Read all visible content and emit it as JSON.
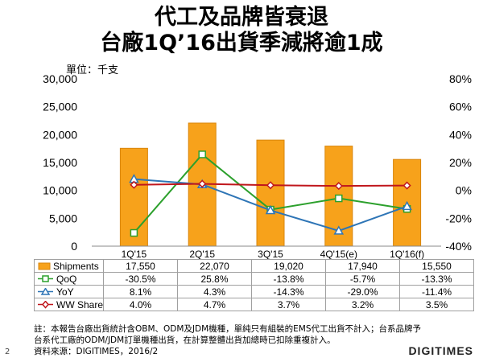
{
  "title_line1": "代工及品牌皆衰退",
  "title_line2": "台廠1Q’16出貨季減將逾1成",
  "unit_label": "單位：千支",
  "note_lines": [
    "註：本報告台廠出貨統計含OBM、ODM及JDM機種，單純只有組裝的EMS代工出貨不計入；台系品牌予",
    "台系代工廠的ODM/JDM訂單機種出貨，在計算整體出貨加總時已扣除重複計入。",
    "資料來源：DIGITIMES，2016/2"
  ],
  "page_number": "2",
  "brand": "DIGITIMES",
  "colors": {
    "bar": "#f7a21b",
    "bar_edge": "#d9860b",
    "qoq": "#2ca02c",
    "yoy": "#2e75b6",
    "ww": "#c0161c"
  },
  "chart_data": {
    "type": "bar",
    "categories": [
      "1Q'15",
      "2Q'15",
      "3Q'15",
      "4Q'15(e)",
      "1Q'16(f)"
    ],
    "left_axis": {
      "ylim": [
        0,
        30000
      ],
      "ticks": [
        "30,000",
        "25,000",
        "20,000",
        "15,000",
        "10,000",
        "5,000",
        "0"
      ]
    },
    "right_axis": {
      "ylim": [
        -40,
        80
      ],
      "ticks": [
        "80%",
        "60%",
        "40%",
        "20%",
        "0%",
        "-20%",
        "-40%"
      ]
    },
    "series": [
      {
        "name": "Shipments",
        "type": "bar",
        "axis": "left",
        "values": [
          17550,
          22070,
          19020,
          17940,
          15550
        ],
        "labels": [
          "17,550",
          "22,070",
          "19,020",
          "17,940",
          "15,550"
        ]
      },
      {
        "name": "QoQ",
        "type": "line",
        "axis": "right",
        "marker": "square",
        "values": [
          -30.5,
          25.8,
          -13.8,
          -5.7,
          -13.3
        ],
        "labels": [
          "-30.5%",
          "25.8%",
          "-13.8%",
          "-5.7%",
          "-13.3%"
        ]
      },
      {
        "name": "YoY",
        "type": "line",
        "axis": "right",
        "marker": "triangle",
        "values": [
          8.1,
          4.3,
          -14.3,
          -29.0,
          -11.4
        ],
        "labels": [
          "8.1%",
          "4.3%",
          "-14.3%",
          "-29.0%",
          "-11.4%"
        ]
      },
      {
        "name": "WW Share",
        "type": "line",
        "axis": "right",
        "marker": "diamond",
        "values": [
          4.0,
          4.7,
          3.7,
          3.2,
          3.5
        ],
        "labels": [
          "4.0%",
          "4.7%",
          "3.7%",
          "3.2%",
          "3.5%"
        ]
      }
    ]
  }
}
